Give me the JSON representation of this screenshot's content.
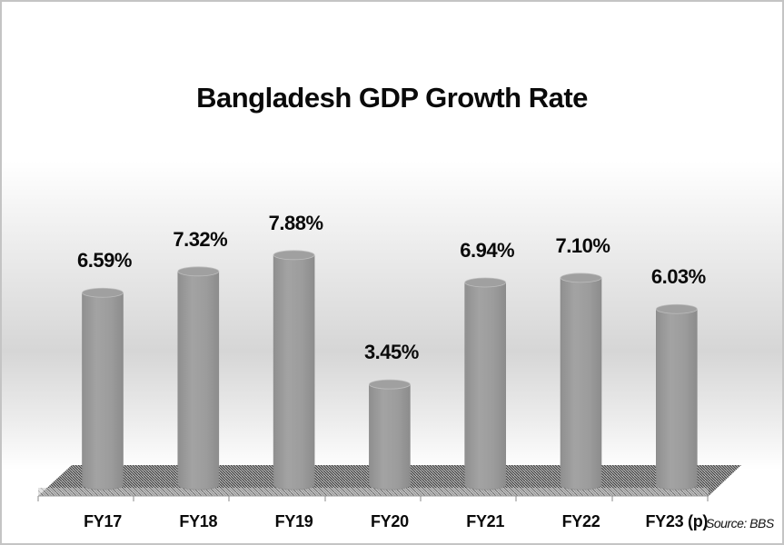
{
  "chart_data": {
    "type": "bar",
    "style": "3d-cylinder",
    "title": "Bangladesh GDP Growth Rate",
    "categories": [
      "FY17",
      "FY18",
      "FY19",
      "FY20",
      "FY21",
      "FY22",
      "FY23 (p)"
    ],
    "values": [
      6.59,
      7.32,
      7.88,
      3.45,
      6.94,
      7.1,
      6.03
    ],
    "data_labels": [
      "6.59%",
      "7.32%",
      "7.88%",
      "3.45%",
      "6.94%",
      "7.10%",
      "6.03%"
    ],
    "xlabel": "",
    "ylabel": "",
    "unit": "%",
    "grid": false,
    "legend": null,
    "annotation": "Source: BBS"
  },
  "colors": {
    "bar": "#9a9a9a",
    "bar_edge": "#8a8a8a",
    "text": "#0a0a0a",
    "border": "#c4c4c4"
  }
}
